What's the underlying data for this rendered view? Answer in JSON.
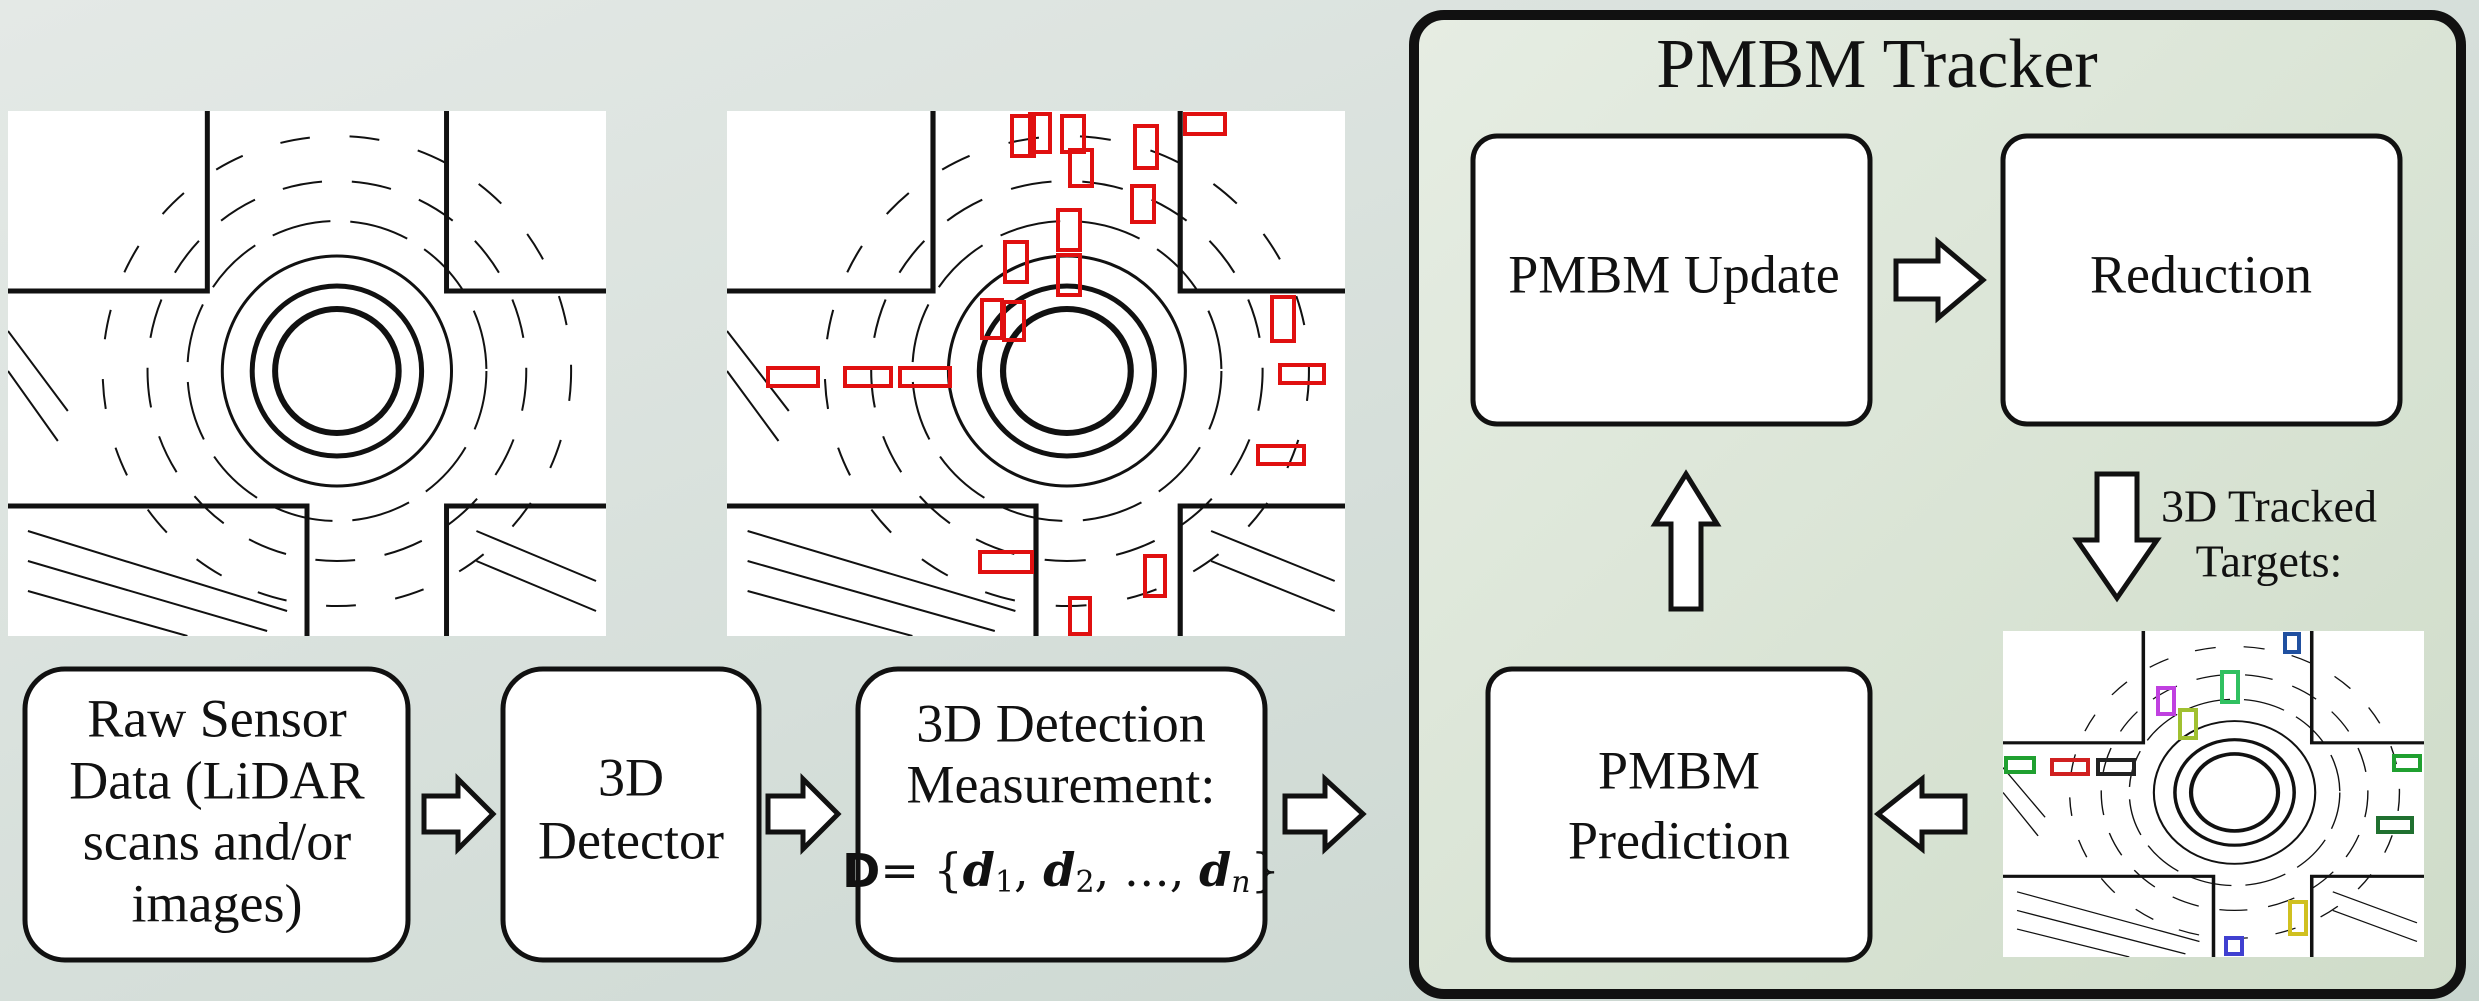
{
  "tracker": {
    "title": "PMBM Tracker"
  },
  "nodes": [
    {
      "lines": [
        "Raw Sensor",
        "Data (LiDAR",
        "scans and/or",
        "images)"
      ]
    },
    {
      "lines": [
        "3D",
        "Detector"
      ]
    },
    {
      "lines": [
        "3D Detection",
        "Measurement:"
      ],
      "formula": [
        "D",
        "= {",
        "d",
        "1",
        ", ",
        "d",
        "2",
        ", …, ",
        "d",
        "n",
        "}"
      ]
    },
    {
      "lines": [
        "PMBM Update"
      ]
    },
    {
      "lines": [
        "Reduction"
      ]
    },
    {
      "lines": [
        "PMBM",
        "Prediction"
      ]
    }
  ],
  "output_label": {
    "lines": [
      "3D Tracked",
      "Targets:"
    ]
  }
}
